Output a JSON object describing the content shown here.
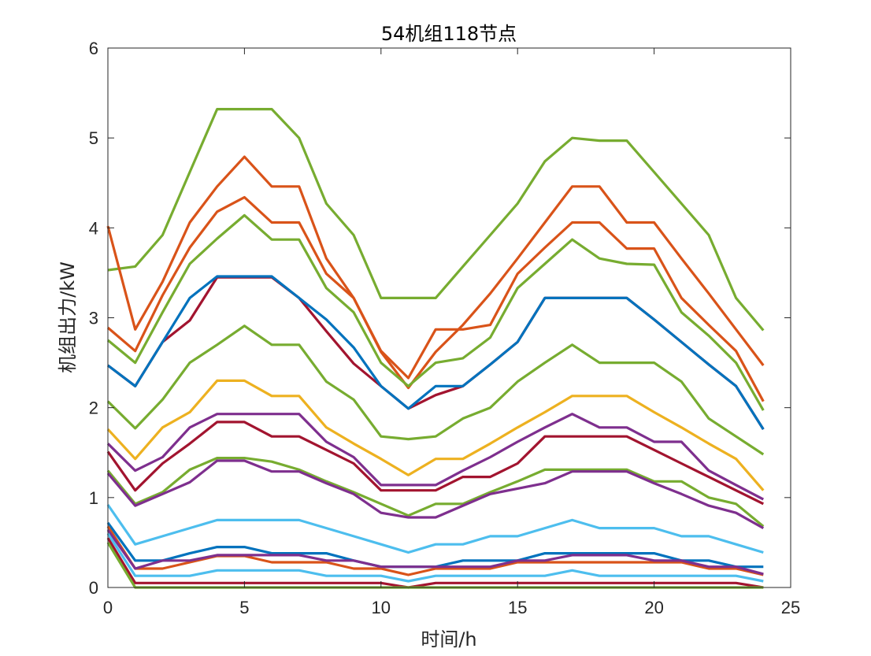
{
  "chart_data": {
    "type": "line",
    "title": "54机组118节点",
    "xlabel": "时间/h",
    "ylabel": "机组出力/kW",
    "xlim": [
      0,
      25
    ],
    "ylim": [
      0,
      6
    ],
    "xticks": [
      0,
      5,
      10,
      15,
      20,
      25
    ],
    "yticks": [
      0,
      1,
      2,
      3,
      4,
      5,
      6
    ],
    "grid": false,
    "x": [
      0,
      1,
      2,
      3,
      4,
      5,
      6,
      7,
      8,
      9,
      10,
      11,
      12,
      13,
      14,
      15,
      16,
      17,
      18,
      19,
      20,
      21,
      22,
      23,
      24
    ],
    "series": [
      {
        "color": "#77AC30",
        "values": [
          3.53,
          3.57,
          3.92,
          4.62,
          5.32,
          5.32,
          5.32,
          5.0,
          4.27,
          3.92,
          3.22,
          3.22,
          3.22,
          3.57,
          3.92,
          4.27,
          4.74,
          5.0,
          4.97,
          4.97,
          4.62,
          4.27,
          3.92,
          3.22,
          2.86
        ]
      },
      {
        "color": "#D95319",
        "values": [
          4.02,
          2.87,
          3.4,
          4.06,
          4.46,
          4.79,
          4.46,
          4.46,
          3.66,
          3.22,
          2.62,
          2.22,
          2.62,
          2.92,
          3.27,
          3.66,
          4.06,
          4.46,
          4.46,
          4.06,
          4.06,
          3.66,
          3.27,
          2.87,
          2.47
        ]
      },
      {
        "color": "#D95319",
        "values": [
          2.89,
          2.63,
          3.25,
          3.78,
          4.18,
          4.34,
          4.06,
          4.06,
          3.49,
          3.22,
          2.63,
          2.33,
          2.87,
          2.87,
          2.92,
          3.49,
          3.78,
          4.06,
          4.06,
          3.77,
          3.77,
          3.22,
          2.92,
          2.63,
          2.07
        ]
      },
      {
        "color": "#77AC30",
        "values": [
          2.75,
          2.5,
          3.06,
          3.6,
          3.88,
          4.14,
          3.87,
          3.87,
          3.33,
          3.06,
          2.5,
          2.24,
          2.5,
          2.55,
          2.78,
          3.33,
          3.6,
          3.87,
          3.66,
          3.6,
          3.59,
          3.06,
          2.8,
          2.5,
          1.97
        ]
      },
      {
        "color": "#A2142F",
        "values": [
          2.47,
          2.24,
          2.73,
          2.97,
          3.45,
          3.45,
          3.45,
          3.22,
          2.85,
          2.49,
          2.24,
          1.99,
          2.14,
          2.24,
          2.48,
          2.73,
          3.22,
          3.22,
          3.22,
          3.22,
          2.98,
          2.73,
          2.48,
          2.24,
          1.76
        ]
      },
      {
        "color": "#0072BD",
        "values": [
          2.47,
          2.24,
          2.73,
          3.22,
          3.46,
          3.46,
          3.46,
          3.22,
          2.98,
          2.67,
          2.24,
          1.99,
          2.24,
          2.24,
          2.48,
          2.73,
          3.22,
          3.22,
          3.22,
          3.22,
          2.98,
          2.73,
          2.48,
          2.24,
          1.76
        ]
      },
      {
        "color": "#77AC30",
        "values": [
          2.07,
          1.77,
          2.09,
          2.5,
          2.7,
          2.91,
          2.7,
          2.7,
          2.29,
          2.09,
          1.68,
          1.65,
          1.68,
          1.88,
          2.0,
          2.29,
          2.5,
          2.7,
          2.5,
          2.5,
          2.5,
          2.29,
          1.88,
          1.68,
          1.48
        ]
      },
      {
        "color": "#EDB120",
        "values": [
          1.76,
          1.43,
          1.78,
          1.95,
          2.3,
          2.3,
          2.13,
          2.13,
          1.78,
          1.6,
          1.43,
          1.25,
          1.43,
          1.43,
          1.6,
          1.78,
          1.95,
          2.13,
          2.13,
          2.13,
          1.95,
          1.78,
          1.6,
          1.43,
          1.08
        ]
      },
      {
        "color": "#7E2F8E",
        "values": [
          1.6,
          1.3,
          1.45,
          1.78,
          1.93,
          1.93,
          1.93,
          1.93,
          1.62,
          1.45,
          1.14,
          1.14,
          1.14,
          1.3,
          1.45,
          1.62,
          1.78,
          1.93,
          1.78,
          1.78,
          1.62,
          1.62,
          1.3,
          1.14,
          0.98
        ]
      },
      {
        "color": "#A2142F",
        "values": [
          1.51,
          1.08,
          1.38,
          1.6,
          1.84,
          1.84,
          1.68,
          1.68,
          1.53,
          1.38,
          1.08,
          1.08,
          1.08,
          1.23,
          1.23,
          1.38,
          1.68,
          1.68,
          1.68,
          1.68,
          1.53,
          1.38,
          1.23,
          1.08,
          0.93
        ]
      },
      {
        "color": "#77AC30",
        "values": [
          1.3,
          0.93,
          1.06,
          1.31,
          1.44,
          1.44,
          1.4,
          1.31,
          1.18,
          1.06,
          0.93,
          0.8,
          0.93,
          0.93,
          1.06,
          1.18,
          1.31,
          1.31,
          1.31,
          1.31,
          1.18,
          1.18,
          1.0,
          0.93,
          0.68
        ]
      },
      {
        "color": "#7E2F8E",
        "values": [
          1.27,
          0.91,
          1.04,
          1.17,
          1.41,
          1.41,
          1.29,
          1.29,
          1.16,
          1.04,
          0.83,
          0.78,
          0.78,
          0.91,
          1.04,
          1.1,
          1.16,
          1.29,
          1.29,
          1.29,
          1.16,
          1.04,
          0.91,
          0.83,
          0.66
        ]
      },
      {
        "color": "#4DBEEE",
        "values": [
          0.92,
          0.48,
          0.57,
          0.66,
          0.75,
          0.75,
          0.75,
          0.75,
          0.66,
          0.57,
          0.48,
          0.39,
          0.48,
          0.48,
          0.57,
          0.57,
          0.66,
          0.75,
          0.66,
          0.66,
          0.66,
          0.57,
          0.57,
          0.48,
          0.39
        ]
      },
      {
        "color": "#0072BD",
        "values": [
          0.72,
          0.3,
          0.3,
          0.38,
          0.45,
          0.45,
          0.38,
          0.38,
          0.38,
          0.3,
          0.23,
          0.23,
          0.23,
          0.3,
          0.3,
          0.3,
          0.38,
          0.38,
          0.38,
          0.38,
          0.38,
          0.3,
          0.3,
          0.23,
          0.23
        ]
      },
      {
        "color": "#D95319",
        "values": [
          0.68,
          0.21,
          0.21,
          0.28,
          0.35,
          0.35,
          0.28,
          0.28,
          0.28,
          0.21,
          0.21,
          0.14,
          0.21,
          0.21,
          0.21,
          0.28,
          0.28,
          0.28,
          0.28,
          0.28,
          0.28,
          0.28,
          0.21,
          0.21,
          0.14
        ]
      },
      {
        "color": "#7E2F8E",
        "values": [
          0.64,
          0.21,
          0.3,
          0.3,
          0.36,
          0.36,
          0.36,
          0.36,
          0.3,
          0.3,
          0.23,
          0.23,
          0.23,
          0.23,
          0.23,
          0.3,
          0.3,
          0.36,
          0.36,
          0.36,
          0.3,
          0.3,
          0.23,
          0.23,
          0.15
        ]
      },
      {
        "color": "#4DBEEE",
        "values": [
          0.6,
          0.13,
          0.13,
          0.13,
          0.19,
          0.19,
          0.19,
          0.19,
          0.13,
          0.13,
          0.13,
          0.07,
          0.13,
          0.13,
          0.13,
          0.13,
          0.13,
          0.19,
          0.13,
          0.13,
          0.13,
          0.13,
          0.13,
          0.13,
          0.07
        ]
      },
      {
        "color": "#A2142F",
        "values": [
          0.55,
          0.05,
          0.05,
          0.05,
          0.05,
          0.05,
          0.05,
          0.05,
          0.05,
          0.05,
          0.05,
          0.0,
          0.05,
          0.05,
          0.05,
          0.05,
          0.05,
          0.05,
          0.05,
          0.05,
          0.05,
          0.05,
          0.05,
          0.05,
          0.0
        ]
      },
      {
        "color": "#77AC30",
        "values": [
          0.5,
          0.0,
          0.0,
          0.0,
          0.0,
          0.0,
          0.0,
          0.0,
          0.0,
          0.0,
          0.0,
          0.0,
          0.0,
          0.0,
          0.0,
          0.0,
          0.0,
          0.0,
          0.0,
          0.0,
          0.0,
          0.0,
          0.0,
          0.0,
          0.0
        ]
      }
    ]
  }
}
